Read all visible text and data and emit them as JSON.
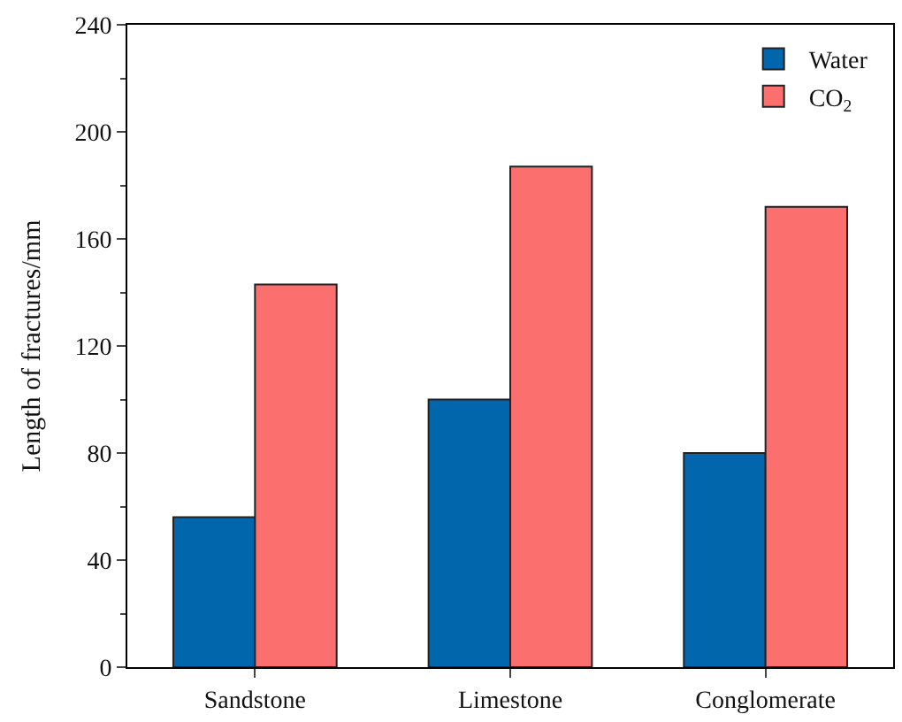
{
  "chart_data": {
    "type": "bar",
    "ylabel": "Length of fractures/mm",
    "categories": [
      "Sandstone",
      "Limestone",
      "Conglomerate"
    ],
    "series": [
      {
        "name": "Water",
        "color": "#0266ac",
        "values": [
          56,
          100,
          80
        ]
      },
      {
        "name": "CO$_{2}$",
        "color": "#fb6f6f",
        "values": [
          143,
          187,
          172
        ]
      }
    ],
    "ylim": [
      0,
      240
    ],
    "yticks": [
      0,
      40,
      80,
      120,
      160,
      200,
      240
    ],
    "legend": "top right"
  }
}
